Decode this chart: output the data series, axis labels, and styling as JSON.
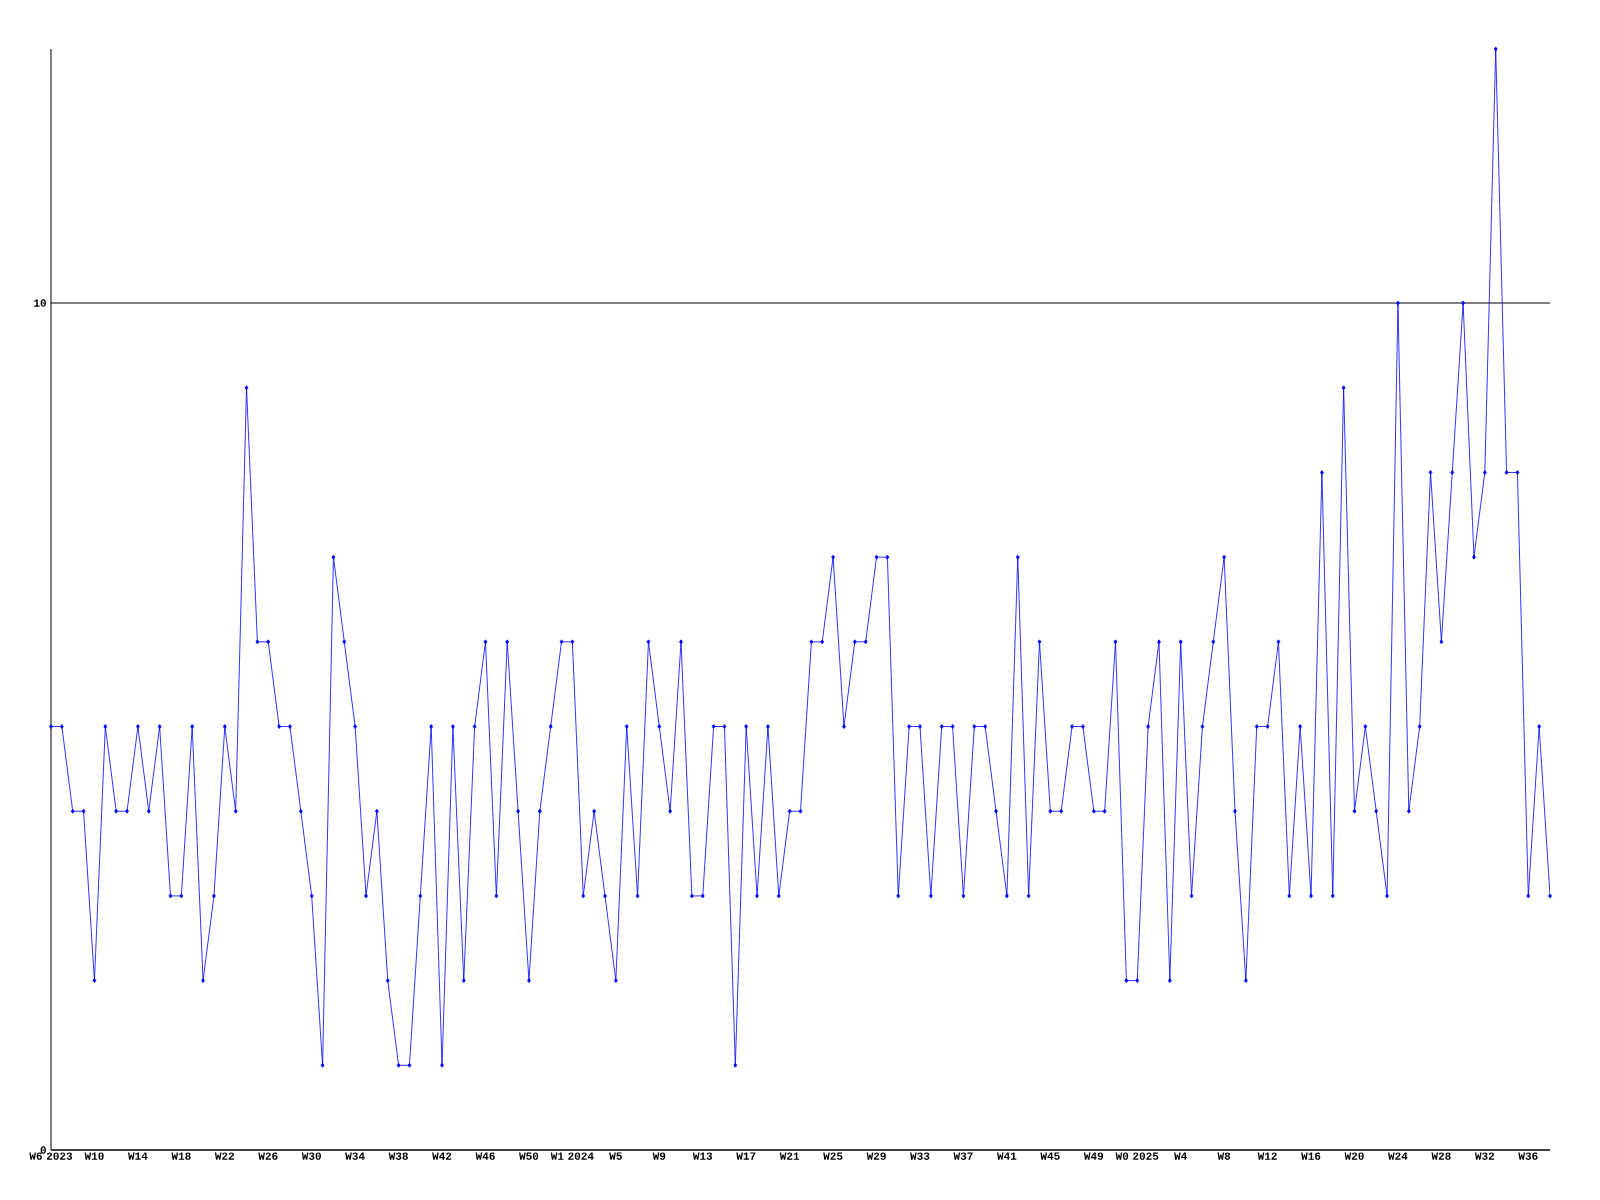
{
  "chart_data": {
    "type": "line",
    "categories": [
      "W6 2023",
      null,
      null,
      null,
      "W10",
      null,
      null,
      null,
      "W14",
      null,
      null,
      null,
      "W18",
      null,
      null,
      null,
      "W22",
      null,
      null,
      null,
      "W26",
      null,
      null,
      null,
      "W30",
      null,
      null,
      null,
      "W34",
      null,
      null,
      null,
      "W38",
      null,
      null,
      null,
      "W42",
      null,
      null,
      null,
      "W46",
      null,
      null,
      null,
      "W50",
      null,
      null,
      null,
      "W1 2024",
      null,
      null,
      null,
      "W5",
      null,
      null,
      null,
      "W9",
      null,
      null,
      null,
      "W13",
      null,
      null,
      null,
      "W17",
      null,
      null,
      null,
      "W21",
      null,
      null,
      null,
      "W25",
      null,
      null,
      null,
      "W29",
      null,
      null,
      null,
      "W33",
      null,
      null,
      null,
      "W37",
      null,
      null,
      null,
      "W41",
      null,
      null,
      null,
      "W45",
      null,
      null,
      null,
      "W49",
      null,
      null,
      null,
      "W0 2025",
      null,
      null,
      null,
      "W4",
      null,
      null,
      null,
      "W8",
      null,
      null,
      null,
      "W12",
      null,
      null,
      null,
      "W16",
      null,
      null,
      null,
      "W20",
      null,
      null,
      null,
      "W24",
      null,
      null,
      null,
      "W28",
      null,
      null,
      null,
      "W32",
      null,
      null,
      null,
      "W36",
      null,
      null
    ],
    "values": [
      5,
      5,
      4,
      4,
      2,
      5,
      4,
      4,
      5,
      4,
      5,
      3,
      3,
      5,
      2,
      3,
      5,
      4,
      9,
      6,
      6,
      5,
      5,
      4,
      3,
      1,
      7,
      6,
      5,
      3,
      4,
      2,
      1,
      1,
      3,
      5,
      1,
      5,
      2,
      5,
      6,
      3,
      6,
      4,
      2,
      4,
      5,
      6,
      6,
      3,
      4,
      3,
      2,
      5,
      3,
      6,
      5,
      4,
      6,
      3,
      3,
      5,
      5,
      1,
      5,
      3,
      5,
      3,
      4,
      4,
      6,
      6,
      7,
      5,
      6,
      6,
      7,
      7,
      3,
      5,
      5,
      3,
      5,
      5,
      3,
      5,
      5,
      4,
      3,
      7,
      3,
      6,
      4,
      4,
      5,
      5,
      4,
      4,
      6,
      2,
      2,
      5,
      6,
      2,
      6,
      3,
      5,
      6,
      7,
      4,
      2,
      5,
      5,
      6,
      3,
      5,
      3,
      8,
      3,
      9,
      4,
      5,
      4,
      3,
      10,
      4,
      5,
      8,
      6,
      8,
      10,
      7,
      8,
      13,
      8,
      8,
      3,
      5,
      3
    ],
    "color": "#0000ff",
    "ylim": [
      0,
      13
    ],
    "yticks": [
      0,
      10
    ],
    "grid": "y",
    "marker": "diamond",
    "line_style": "solid"
  }
}
